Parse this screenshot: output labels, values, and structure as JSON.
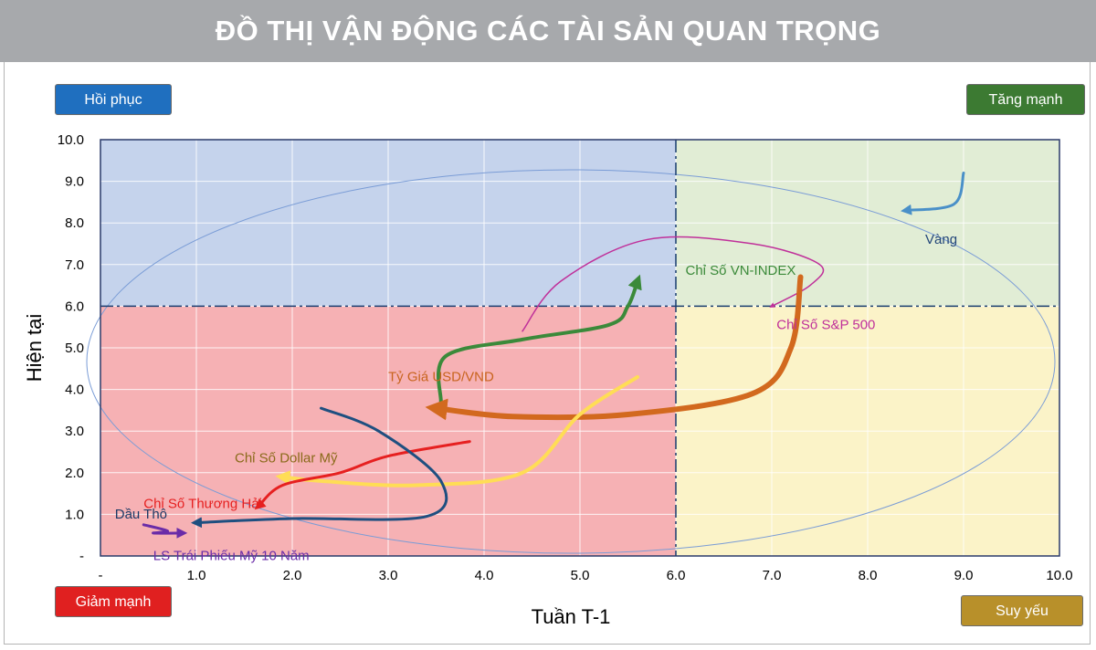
{
  "header": {
    "title": "ĐỒ THỊ VẬN ĐỘNG CÁC TÀI SẢN QUAN TRỌNG"
  },
  "quadrants": {
    "top_left": {
      "label": "Hồi phục",
      "color": "#c5d3ec"
    },
    "top_right": {
      "label": "Tăng mạnh",
      "color": "#e1edd5"
    },
    "bottom_left": {
      "label": "Giảm mạnh",
      "color": "#f6b1b4"
    },
    "bottom_right": {
      "label": "Suy yếu",
      "color": "#fbf3c8"
    }
  },
  "chart_data": {
    "type": "scatter",
    "xlabel": "Tuần T-1",
    "ylabel": "Hiện tại",
    "xlim": [
      0,
      10
    ],
    "ylim": [
      0,
      10
    ],
    "divider": {
      "x": 6.0,
      "y": 6.0
    },
    "grid": true,
    "x_ticks": [
      "-",
      "1.0",
      "2.0",
      "3.0",
      "4.0",
      "5.0",
      "6.0",
      "7.0",
      "8.0",
      "9.0",
      "10.0"
    ],
    "y_ticks": [
      "-",
      "1.0",
      "2.0",
      "3.0",
      "4.0",
      "5.0",
      "6.0",
      "7.0",
      "8.0",
      "9.0",
      "10.0"
    ],
    "series": [
      {
        "name": "Vàng",
        "color": "#4a90c8",
        "width": 3,
        "points": [
          [
            9.0,
            9.2
          ],
          [
            8.9,
            8.45
          ],
          [
            8.4,
            8.3
          ]
        ]
      },
      {
        "name": "Chỉ Số VN-INDEX",
        "color": "#3b8a3a",
        "width": 4,
        "points": [
          [
            3.55,
            3.7
          ],
          [
            3.6,
            4.8
          ],
          [
            4.4,
            5.2
          ],
          [
            5.3,
            5.55
          ],
          [
            5.5,
            6.0
          ],
          [
            5.6,
            6.6
          ]
        ]
      },
      {
        "name": "Chỉ Số S&P 500",
        "color": "#c0309a",
        "width": 1.5,
        "points": [
          [
            4.4,
            5.4
          ],
          [
            4.8,
            6.6
          ],
          [
            5.7,
            7.6
          ],
          [
            6.8,
            7.5
          ],
          [
            7.5,
            7.0
          ],
          [
            7.4,
            6.5
          ],
          [
            7.0,
            6.0
          ]
        ]
      },
      {
        "name": "Tỷ Giá USD/VND",
        "color": "#d2691e",
        "width": 6,
        "points": [
          [
            7.3,
            6.7
          ],
          [
            7.2,
            5.0
          ],
          [
            6.8,
            3.9
          ],
          [
            5.5,
            3.4
          ],
          [
            4.3,
            3.35
          ],
          [
            3.5,
            3.55
          ]
        ]
      },
      {
        "name": "Chỉ Số Dollar Mỹ",
        "color": "#ffdd55",
        "width": 4,
        "points": [
          [
            5.6,
            4.3
          ],
          [
            5.0,
            3.4
          ],
          [
            4.4,
            2.0
          ],
          [
            3.3,
            1.7
          ],
          [
            2.3,
            1.8
          ],
          [
            1.9,
            1.9
          ]
        ]
      },
      {
        "name": "Chỉ Số Thương Hải",
        "color": "#e62020",
        "width": 3,
        "points": [
          [
            3.85,
            2.75
          ],
          [
            3.0,
            2.4
          ],
          [
            2.5,
            2.0
          ],
          [
            1.9,
            1.7
          ],
          [
            1.65,
            1.2
          ]
        ]
      },
      {
        "name": "Dầu Thô",
        "color": "#1e4f80",
        "width": 3,
        "points": [
          [
            2.3,
            3.55
          ],
          [
            2.9,
            3.0
          ],
          [
            3.55,
            1.8
          ],
          [
            3.4,
            0.95
          ],
          [
            2.0,
            0.9
          ],
          [
            1.0,
            0.8
          ]
        ]
      },
      {
        "name": "LS Trái Phiếu Mỹ 10 Năm",
        "color": "#6a2ca8",
        "width": 3,
        "points": [
          [
            0.45,
            0.75
          ],
          [
            0.7,
            0.6
          ],
          [
            0.55,
            0.55
          ],
          [
            0.85,
            0.55
          ]
        ]
      }
    ],
    "labels": [
      {
        "text": "Vàng",
        "x": 8.6,
        "y": 7.5,
        "color": "#24477a"
      },
      {
        "text": "Chỉ Số VN-INDEX",
        "x": 6.1,
        "y": 6.75,
        "color": "#3b8a3a"
      },
      {
        "text": "Chỉ Số S&P 500",
        "x": 7.05,
        "y": 5.45,
        "color": "#c0309a"
      },
      {
        "text": "Tỷ Giá USD/VND",
        "x": 3.0,
        "y": 4.2,
        "color": "#c8641e"
      },
      {
        "text": "Chỉ Số Dollar Mỹ",
        "x": 1.4,
        "y": 2.25,
        "color": "#8a6a1a"
      },
      {
        "text": "Chỉ Số Thương Hải",
        "x": 0.45,
        "y": 1.15,
        "color": "#e62020"
      },
      {
        "text": "Dầu Thô",
        "x": 0.15,
        "y": 0.9,
        "color": "#1e3a66"
      },
      {
        "text": "LS Trái Phiếu Mỹ 10 Năm",
        "x": 0.55,
        "y": -0.1,
        "color": "#6a2ca8"
      }
    ]
  }
}
